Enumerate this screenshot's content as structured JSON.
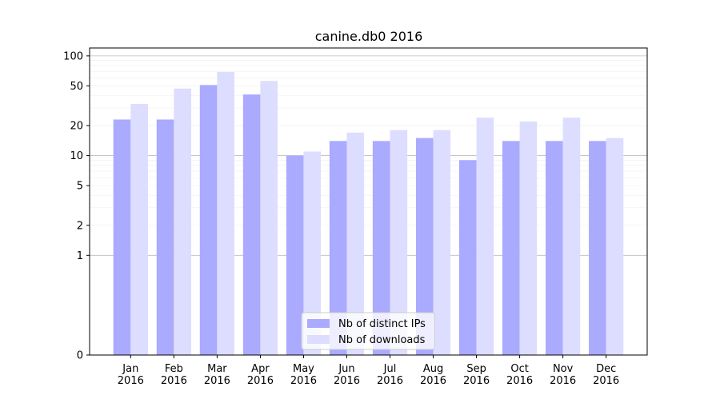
{
  "chart_data": {
    "type": "bar",
    "title": "canine.db0 2016",
    "xlabel": "",
    "ylabel": "",
    "y_scale": "symlog",
    "ylim": [
      0,
      120
    ],
    "y_ticks": [
      0,
      1,
      2,
      5,
      10,
      20,
      50,
      100
    ],
    "categories": [
      "Jan\n2016",
      "Feb\n2016",
      "Mar\n2016",
      "Apr\n2016",
      "May\n2016",
      "Jun\n2016",
      "Jul\n2016",
      "Aug\n2016",
      "Sep\n2016",
      "Oct\n2016",
      "Nov\n2016",
      "Dec\n2016"
    ],
    "series": [
      {
        "name": "Nb of distinct IPs",
        "color": "#aaaaff",
        "values": [
          23,
          23,
          51,
          41,
          10,
          14,
          14,
          15,
          9,
          14,
          14,
          14
        ]
      },
      {
        "name": "Nb of downloads",
        "color": "#ddddff",
        "values": [
          33,
          47,
          69,
          56,
          11,
          17,
          18,
          18,
          24,
          22,
          24,
          15
        ]
      }
    ],
    "grid": true,
    "legend_position": "lower center"
  }
}
